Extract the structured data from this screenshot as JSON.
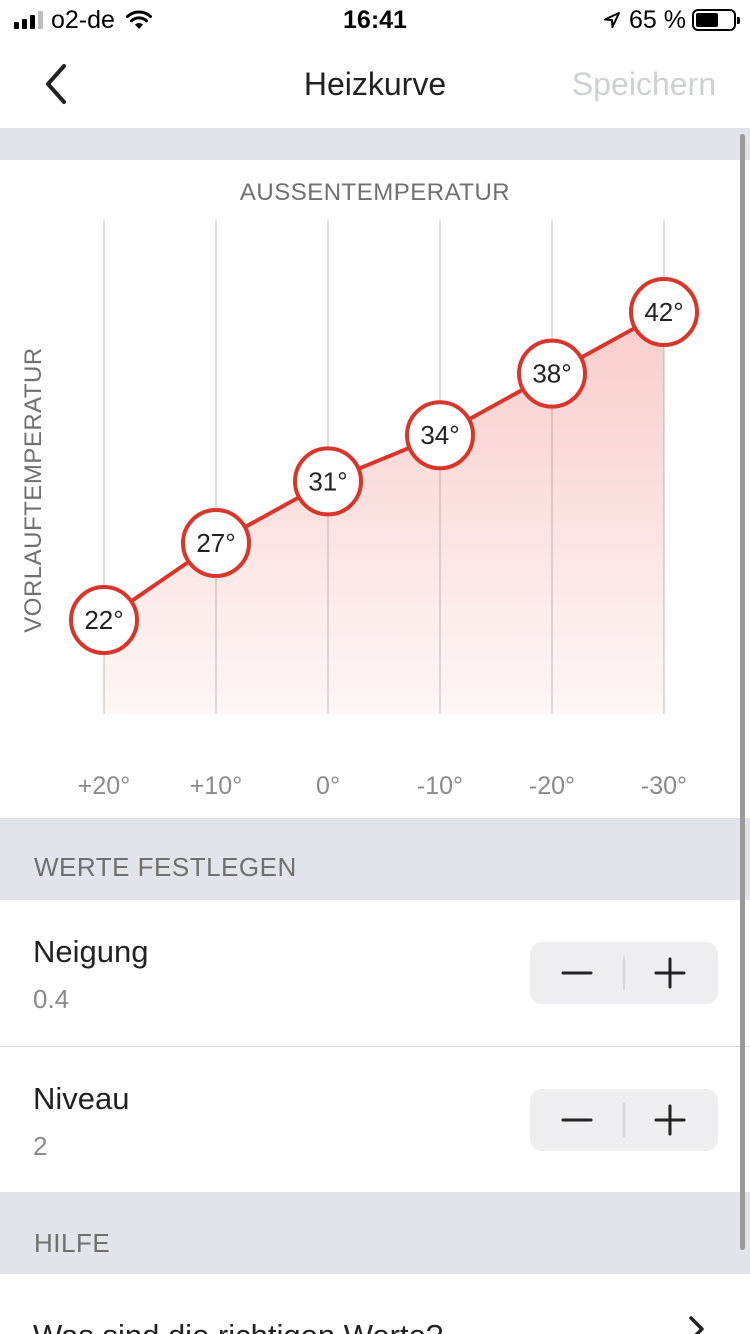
{
  "status_bar": {
    "carrier": "o2-de",
    "time": "16:41",
    "battery_percent": "65 %",
    "battery_level": 0.62
  },
  "nav": {
    "title": "Heizkurve",
    "save_label": "Speichern"
  },
  "colors": {
    "accent": "#d9362b",
    "band": "#e1e4ea",
    "disabled_text": "#cfd0d4"
  },
  "chart_data": {
    "type": "area",
    "xlabel": "AUSSENTEMPERATUR",
    "ylabel": "VORLAUFTEMPERATUR",
    "categories": [
      "+20°",
      "+10°",
      "0°",
      "-10°",
      "-20°",
      "-30°"
    ],
    "x": [
      20,
      10,
      0,
      -10,
      -20,
      -30
    ],
    "values": [
      22,
      27,
      31,
      34,
      38,
      42
    ],
    "point_labels": [
      "22°",
      "27°",
      "31°",
      "34°",
      "38°",
      "42°"
    ],
    "grid": "vertical"
  },
  "settings": {
    "section_title": "WERTE FESTLEGEN",
    "rows": [
      {
        "label": "Neigung",
        "value": "0.4"
      },
      {
        "label": "Niveau",
        "value": "2"
      }
    ],
    "minus_symbol": "−",
    "plus_symbol": "+"
  },
  "help": {
    "section_title": "HILFE",
    "item_label": "Was sind die richtigen Werte?"
  }
}
